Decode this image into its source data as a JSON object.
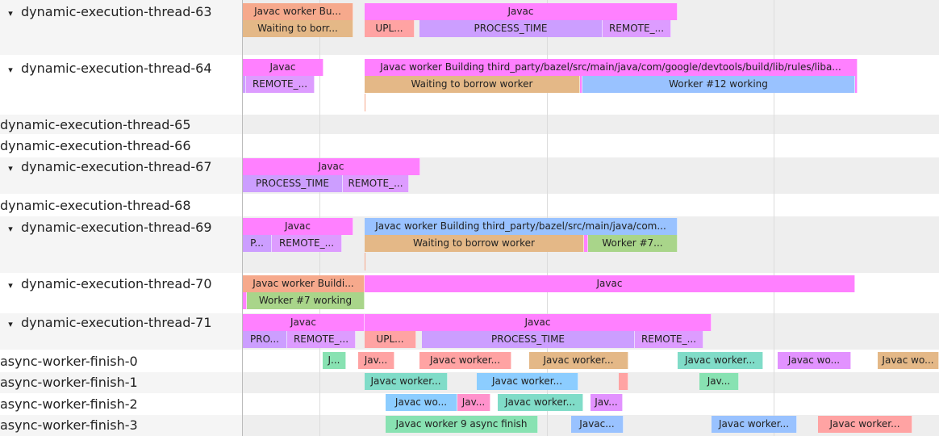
{
  "colors": {
    "magenta": "#ff80ff",
    "salmon": "#f6a98c",
    "tan": "#e4b887",
    "pink": "#ffa3a3",
    "purple": "#cc9eff",
    "violet": "#dd9cff",
    "blue": "#99c2ff",
    "green": "#a9d58a",
    "teal": "#80dcc8",
    "mint": "#88e2b2",
    "sky": "#8ccdff",
    "rose": "#ff92cc",
    "lilac": "#e292ff"
  },
  "tracks": [
    {
      "name": "dynamic-execution-thread-63",
      "expanded": true,
      "slices": [
        {
          "label": "Javac worker Bu...",
          "color": "salmon"
        },
        {
          "label": "Javac",
          "color": "magenta"
        },
        {
          "label": "Waiting to borr...",
          "color": "tan"
        },
        {
          "label": "UPL...",
          "color": "pink"
        },
        {
          "label": "PROCESS_TIME",
          "color": "purple"
        },
        {
          "label": "REMOTE_...",
          "color": "violet"
        }
      ]
    },
    {
      "name": "dynamic-execution-thread-64",
      "expanded": true,
      "slices": [
        {
          "label": "Javac",
          "color": "magenta"
        },
        {
          "label": "Javac worker Building third_party/bazel/src/main/java/com/google/devtools/build/lib/rules/liba...",
          "color": "magenta"
        },
        {
          "label": "",
          "color": "purple"
        },
        {
          "label": "REMOTE_...",
          "color": "violet"
        },
        {
          "label": "Waiting to borrow worker",
          "color": "tan"
        },
        {
          "label": "",
          "color": "magenta"
        },
        {
          "label": "Worker #12 working",
          "color": "blue"
        },
        {
          "label": "",
          "color": "magenta"
        }
      ]
    },
    {
      "name": "dynamic-execution-thread-65",
      "expanded": false,
      "slices": []
    },
    {
      "name": "dynamic-execution-thread-66",
      "expanded": false,
      "slices": []
    },
    {
      "name": "dynamic-execution-thread-67",
      "expanded": true,
      "slices": [
        {
          "label": "Javac",
          "color": "magenta"
        },
        {
          "label": "PROCESS_TIME",
          "color": "purple"
        },
        {
          "label": "REMOTE_...",
          "color": "violet"
        }
      ]
    },
    {
      "name": "dynamic-execution-thread-68",
      "expanded": false,
      "slices": []
    },
    {
      "name": "dynamic-execution-thread-69",
      "expanded": true,
      "slices": [
        {
          "label": "Javac",
          "color": "magenta"
        },
        {
          "label": "Javac worker Building third_party/bazel/src/main/java/com...",
          "color": "blue"
        },
        {
          "label": "P...",
          "color": "purple"
        },
        {
          "label": "REMOTE_...",
          "color": "violet"
        },
        {
          "label": "Waiting to borrow worker",
          "color": "tan"
        },
        {
          "label": "",
          "color": "magenta"
        },
        {
          "label": "Worker #7...",
          "color": "green"
        }
      ]
    },
    {
      "name": "dynamic-execution-thread-70",
      "expanded": true,
      "slices": [
        {
          "label": "Javac worker Buildi...",
          "color": "salmon"
        },
        {
          "label": "Javac",
          "color": "magenta"
        },
        {
          "label": "",
          "color": "magenta"
        },
        {
          "label": "Worker #7 working",
          "color": "green"
        }
      ]
    },
    {
      "name": "dynamic-execution-thread-71",
      "expanded": true,
      "slices": [
        {
          "label": "Javac",
          "color": "magenta"
        },
        {
          "label": "Javac",
          "color": "magenta"
        },
        {
          "label": "PRO...",
          "color": "purple"
        },
        {
          "label": "REMOTE_...",
          "color": "violet"
        },
        {
          "label": "UPL...",
          "color": "pink"
        },
        {
          "label": "PROCESS_TIME",
          "color": "purple"
        },
        {
          "label": "REMOTE_...",
          "color": "violet"
        }
      ]
    },
    {
      "name": "async-worker-finish-0",
      "expanded": false,
      "slices": [
        {
          "label": "J...",
          "color": "mint"
        },
        {
          "label": "Jav...",
          "color": "pink"
        },
        {
          "label": "Javac worker...",
          "color": "pink"
        },
        {
          "label": "Javac worker...",
          "color": "tan"
        },
        {
          "label": "Javac worker...",
          "color": "teal"
        },
        {
          "label": "Javac wo...",
          "color": "lilac"
        },
        {
          "label": "Javac wo...",
          "color": "tan"
        }
      ]
    },
    {
      "name": "async-worker-finish-1",
      "expanded": false,
      "slices": [
        {
          "label": "Javac worker...",
          "color": "teal"
        },
        {
          "label": "Javac worker...",
          "color": "sky"
        },
        {
          "label": "",
          "color": "pink"
        },
        {
          "label": "Jav...",
          "color": "mint"
        }
      ]
    },
    {
      "name": "async-worker-finish-2",
      "expanded": false,
      "slices": [
        {
          "label": "Javac wo...",
          "color": "sky"
        },
        {
          "label": "Jav...",
          "color": "rose"
        },
        {
          "label": "Javac worker...",
          "color": "teal"
        },
        {
          "label": "Jav...",
          "color": "lilac"
        }
      ]
    },
    {
      "name": "async-worker-finish-3",
      "expanded": false,
      "slices": [
        {
          "label": "Javac worker 9 async finish",
          "color": "mint"
        },
        {
          "label": "Javac...",
          "color": "blue"
        },
        {
          "label": "Javac worker...",
          "color": "blue"
        },
        {
          "label": "Javac worker...",
          "color": "pink"
        }
      ]
    }
  ],
  "chevron": "▾"
}
